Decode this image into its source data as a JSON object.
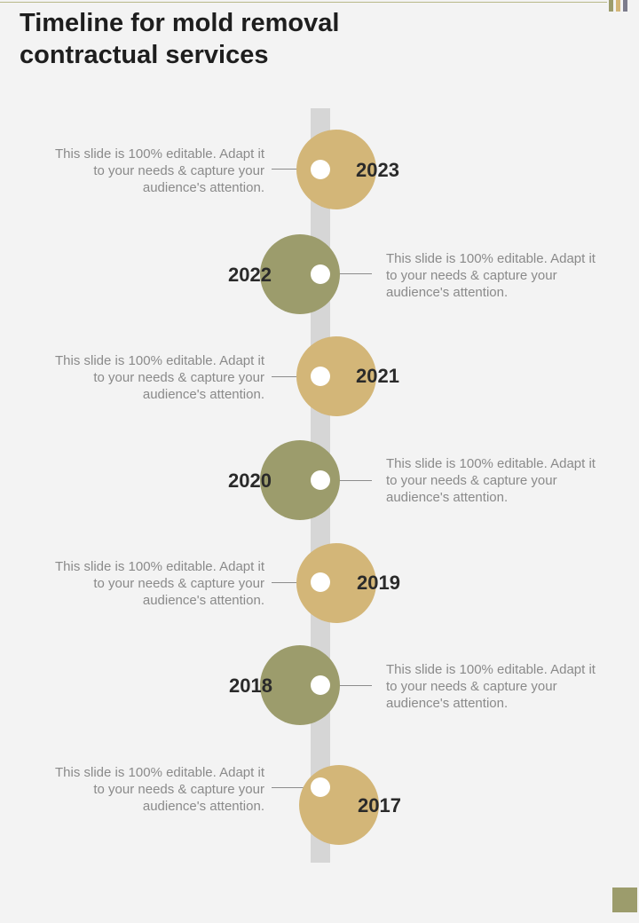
{
  "title": "Timeline for mold removal contractual services",
  "colors": {
    "gold": "#d3b678",
    "olive": "#9c9c6c",
    "bar": "#d6d6d6",
    "stripes": [
      "#9c9c6c",
      "#d3b678",
      "#7c7c8c"
    ]
  },
  "milestones": [
    {
      "year": "2023",
      "description": "This slide is 100% editable. Adapt it to your needs & capture your audience's attention.",
      "color": "#d3b678"
    },
    {
      "year": "2022",
      "description": "This slide is 100% editable. Adapt it to your needs & capture your audience's attention.",
      "color": "#9c9c6c"
    },
    {
      "year": "2021",
      "description": "This slide is 100% editable. Adapt it to your needs & capture your audience's attention.",
      "color": "#d3b678"
    },
    {
      "year": "2020",
      "description": "This slide is 100% editable. Adapt it to your needs & capture your audience's attention.",
      "color": "#9c9c6c"
    },
    {
      "year": "2019",
      "description": "This slide is 100% editable. Adapt it to your needs & capture your audience's attention.",
      "color": "#d3b678"
    },
    {
      "year": "2018",
      "description": "This slide is 100% editable. Adapt it to your needs & capture your audience's attention.",
      "color": "#9c9c6c"
    },
    {
      "year": "2017",
      "description": "This slide is 100% editable. Adapt it to your needs & capture your audience's attention.",
      "color": "#d3b678"
    }
  ]
}
